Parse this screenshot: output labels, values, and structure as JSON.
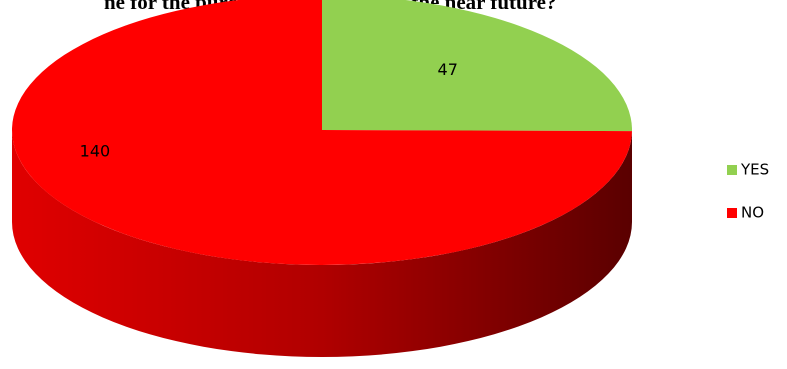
{
  "chart_data": {
    "type": "pie",
    "title": "ne for the purchase of products in the near future?",
    "categories": [
      "YES",
      "NO"
    ],
    "values": [
      47,
      140
    ],
    "colors": [
      "#92d050",
      "#ff0000"
    ],
    "legend": "right"
  }
}
